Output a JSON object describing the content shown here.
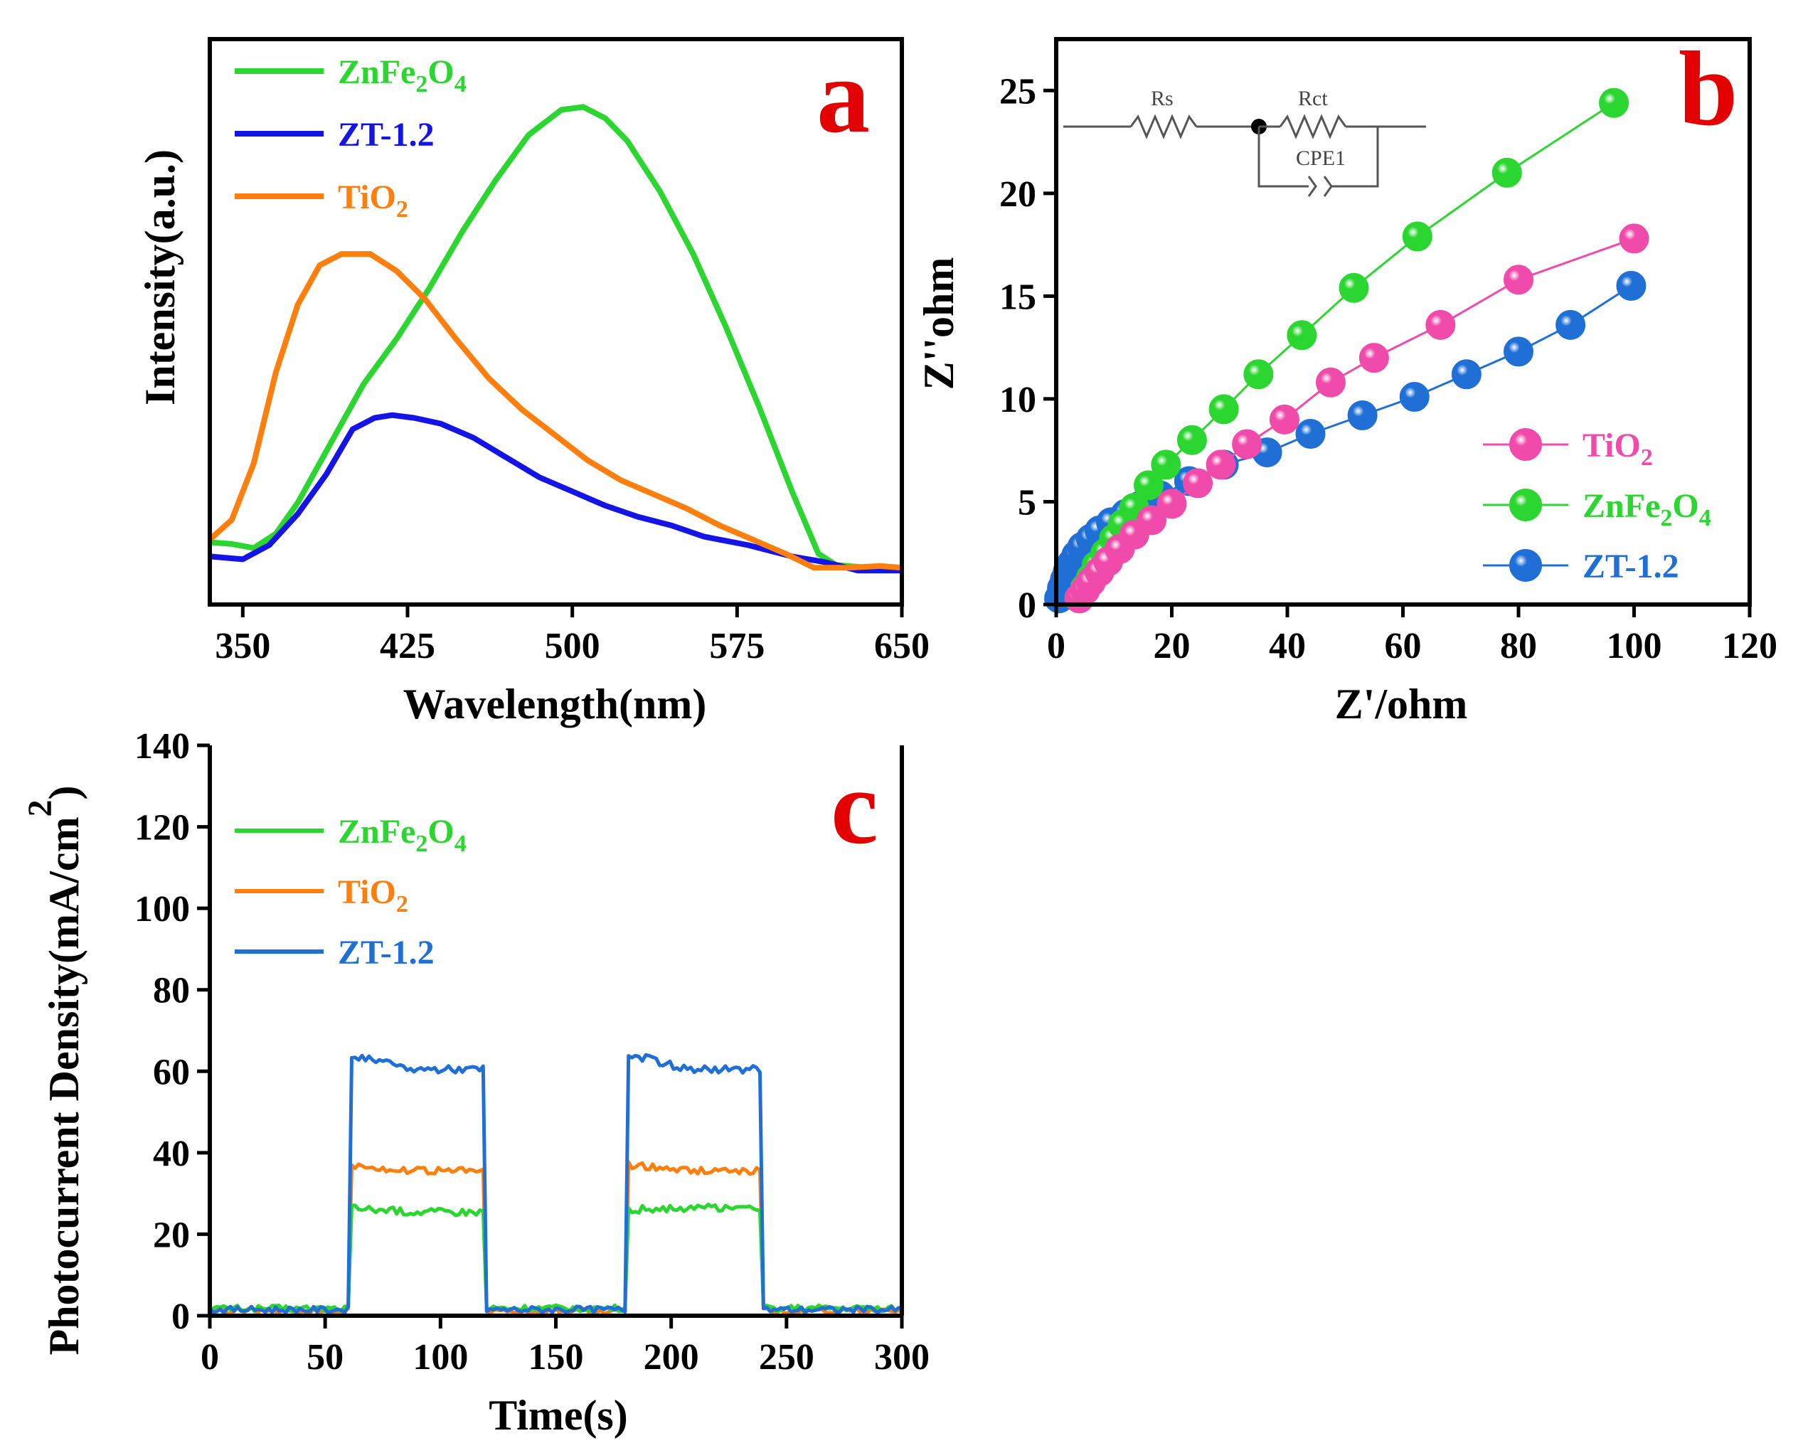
{
  "colors": {
    "green": "#2cd630",
    "blue": "#1414e6",
    "orange": "#ff7f0e",
    "pink": "#f04bab",
    "blue_c": "#1f6fd6",
    "panel_letter": "#e30000",
    "text": "#000000"
  },
  "chart_data": [
    {
      "id": "a",
      "type": "line",
      "panel_label": "a",
      "xlabel": "Wavelength(nm)",
      "ylabel": "Intensity(a.u.)",
      "xlim": [
        335,
        650
      ],
      "ylim": [
        0,
        1
      ],
      "xticks": [
        350,
        425,
        500,
        575,
        650
      ],
      "yticks": [],
      "legend": {
        "position": "top-left"
      },
      "series": [
        {
          "name": "ZnFe",
          "label_main": "ZnFe",
          "label_sub1": "2",
          "label_mid": "O",
          "label_sub2": "4",
          "color_key": "green",
          "points": [
            [
              335,
              0.11
            ],
            [
              345,
              0.107
            ],
            [
              355,
              0.1
            ],
            [
              365,
              0.125
            ],
            [
              375,
              0.18
            ],
            [
              385,
              0.25
            ],
            [
              395,
              0.32
            ],
            [
              405,
              0.39
            ],
            [
              420,
              0.47
            ],
            [
              435,
              0.56
            ],
            [
              450,
              0.66
            ],
            [
              465,
              0.75
            ],
            [
              480,
              0.83
            ],
            [
              495,
              0.875
            ],
            [
              505,
              0.88
            ],
            [
              515,
              0.86
            ],
            [
              525,
              0.82
            ],
            [
              540,
              0.73
            ],
            [
              555,
              0.62
            ],
            [
              570,
              0.49
            ],
            [
              585,
              0.35
            ],
            [
              600,
              0.2
            ],
            [
              612,
              0.09
            ],
            [
              620,
              0.07
            ],
            [
              635,
              0.065
            ],
            [
              650,
              0.065
            ]
          ]
        },
        {
          "name": "ZT-1.2",
          "label_main": "ZT-1.2",
          "label_sub1": "",
          "label_mid": "",
          "label_sub2": "",
          "color_key": "blue",
          "points": [
            [
              335,
              0.085
            ],
            [
              350,
              0.08
            ],
            [
              362,
              0.105
            ],
            [
              375,
              0.16
            ],
            [
              388,
              0.23
            ],
            [
              400,
              0.31
            ],
            [
              410,
              0.33
            ],
            [
              418,
              0.335
            ],
            [
              428,
              0.33
            ],
            [
              440,
              0.32
            ],
            [
              455,
              0.295
            ],
            [
              470,
              0.26
            ],
            [
              485,
              0.225
            ],
            [
              500,
              0.2
            ],
            [
              515,
              0.175
            ],
            [
              530,
              0.155
            ],
            [
              545,
              0.14
            ],
            [
              560,
              0.12
            ],
            [
              580,
              0.105
            ],
            [
              600,
              0.085
            ],
            [
              615,
              0.075
            ],
            [
              630,
              0.06
            ],
            [
              650,
              0.06
            ]
          ]
        },
        {
          "name": "TiO",
          "label_main": "TiO",
          "label_sub1": "2",
          "label_mid": "",
          "label_sub2": "",
          "color_key": "orange",
          "points": [
            [
              335,
              0.115
            ],
            [
              345,
              0.15
            ],
            [
              355,
              0.25
            ],
            [
              365,
              0.41
            ],
            [
              375,
              0.53
            ],
            [
              385,
              0.6
            ],
            [
              395,
              0.62
            ],
            [
              408,
              0.62
            ],
            [
              420,
              0.59
            ],
            [
              433,
              0.54
            ],
            [
              447,
              0.47
            ],
            [
              462,
              0.4
            ],
            [
              477,
              0.345
            ],
            [
              492,
              0.3
            ],
            [
              507,
              0.255
            ],
            [
              522,
              0.22
            ],
            [
              537,
              0.195
            ],
            [
              552,
              0.17
            ],
            [
              567,
              0.14
            ],
            [
              582,
              0.115
            ],
            [
              597,
              0.09
            ],
            [
              610,
              0.065
            ],
            [
              625,
              0.065
            ],
            [
              640,
              0.068
            ],
            [
              650,
              0.065
            ]
          ]
        }
      ]
    },
    {
      "id": "b",
      "type": "scatter",
      "panel_label": "b",
      "xlabel": "Z'/ohm",
      "ylabel": "Z''ohm",
      "xlim": [
        0,
        120
      ],
      "ylim": [
        0,
        27.5
      ],
      "xticks": [
        0,
        20,
        40,
        60,
        80,
        100,
        120
      ],
      "yticks": [
        0,
        5,
        10,
        15,
        20,
        25
      ],
      "legend": {
        "position": "middle-right"
      },
      "circuit_labels": {
        "rs": "Rs",
        "rct": "Rct",
        "cpe": "CPE1"
      },
      "series": [
        {
          "name": "TiO",
          "label_main": "TiO",
          "label_sub1": "2",
          "label_mid": "",
          "label_sub2": "",
          "color_key": "pink",
          "x": [
            4.0,
            5.0,
            6.0,
            7.5,
            9.0,
            11.0,
            13.5,
            16.5,
            20.0,
            24.5,
            28.5,
            33.0,
            39.5,
            47.5,
            55.0,
            66.5,
            80.0,
            100.0
          ],
          "y": [
            0.3,
            0.7,
            1.1,
            1.6,
            2.1,
            2.7,
            3.4,
            4.1,
            4.9,
            5.9,
            6.8,
            7.8,
            9.0,
            10.8,
            12.0,
            13.6,
            15.8,
            17.8
          ]
        },
        {
          "name": "ZnFe",
          "label_main": "ZnFe",
          "label_sub1": "2",
          "label_mid": "O",
          "label_sub2": "4",
          "color_key": "green",
          "x": [
            4.0,
            5.0,
            6.0,
            7.0,
            8.5,
            10.0,
            11.5,
            13.5,
            16.0,
            19.0,
            23.5,
            29.0,
            35.0,
            42.5,
            51.5,
            62.5,
            78.0,
            96.5
          ],
          "y": [
            0.3,
            0.8,
            1.3,
            1.9,
            2.5,
            3.2,
            3.9,
            4.7,
            5.8,
            6.8,
            8.0,
            9.5,
            11.2,
            13.1,
            15.4,
            17.9,
            21.0,
            24.4
          ]
        },
        {
          "name": "ZT-1.2",
          "label_main": "ZT-1.2",
          "label_sub1": "",
          "label_mid": "",
          "label_sub2": "",
          "color_key": "blue_c",
          "x": [
            0.5,
            1.0,
            1.5,
            2.0,
            2.7,
            3.5,
            4.5,
            6.0,
            7.5,
            9.5,
            12.0,
            14.5,
            18.0,
            23.0,
            29.0,
            36.5,
            44.0,
            53.0,
            62.0,
            71.0,
            80.0,
            89.0,
            99.5
          ],
          "y": [
            0.3,
            0.8,
            1.2,
            1.6,
            2.0,
            2.4,
            2.8,
            3.2,
            3.6,
            4.0,
            4.4,
            4.8,
            5.3,
            6.0,
            6.8,
            7.4,
            8.3,
            9.2,
            10.1,
            11.2,
            12.3,
            13.6,
            15.5
          ]
        }
      ]
    },
    {
      "id": "c",
      "type": "line",
      "panel_label": "c",
      "xlabel": "Time(s)",
      "ylabel": "Photocurrent Density(mA/cm",
      "ylabel_sup": "2",
      "ylabel_close": ")",
      "xlim": [
        0,
        300
      ],
      "ylim": [
        0,
        140
      ],
      "xticks": [
        0,
        50,
        100,
        150,
        200,
        250,
        300
      ],
      "yticks": [
        0,
        20,
        40,
        60,
        80,
        100,
        120,
        140
      ],
      "legend": {
        "position": "top-left"
      },
      "light_on_intervals": [
        [
          60,
          120
        ],
        [
          180,
          240
        ]
      ],
      "series": [
        {
          "name": "ZnFe",
          "label_main": "ZnFe",
          "label_sub1": "2",
          "label_mid": "O",
          "label_sub2": "4",
          "color_key": "green",
          "off_level": 1.8,
          "on_levels": [
            [
              26.5,
              25.5
            ],
            [
              26.0,
              26.5
            ]
          ]
        },
        {
          "name": "TiO",
          "label_main": "TiO",
          "label_sub1": "2",
          "label_mid": "",
          "label_sub2": "",
          "color_key": "orange",
          "off_level": 1.2,
          "on_levels": [
            [
              37.0,
              35.5
            ],
            [
              37.0,
              35.5
            ]
          ]
        },
        {
          "name": "ZT-1.2",
          "label_main": "ZT-1.2",
          "label_sub1": "",
          "label_mid": "",
          "label_sub2": "",
          "color_key": "blue_c",
          "off_level": 1.5,
          "on_levels": [
            [
              64.0,
              60.5
            ],
            [
              64.5,
              60.5
            ]
          ]
        }
      ]
    }
  ]
}
